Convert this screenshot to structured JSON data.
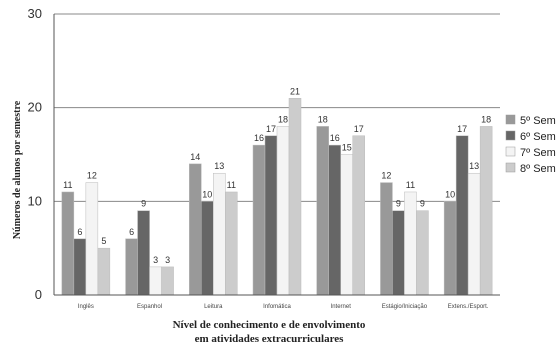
{
  "chart_data": {
    "type": "bar",
    "categories": [
      "Inglês",
      "Espanhol",
      "Leitura",
      "Infomática",
      "Internet",
      "Estágio/Iniciação",
      "Extens./Esport."
    ],
    "series": [
      {
        "name": "5º Sem",
        "color": "#999999",
        "values": [
          11,
          6,
          14,
          16,
          18,
          12,
          10
        ]
      },
      {
        "name": "6º Sem",
        "color": "#666666",
        "values": [
          6,
          9,
          10,
          17,
          16,
          9,
          17
        ]
      },
      {
        "name": "7º Sem",
        "color": "#f4f4f4",
        "values": [
          12,
          3,
          13,
          18,
          15,
          11,
          13
        ]
      },
      {
        "name": "8º Sem",
        "color": "#cccccc",
        "values": [
          5,
          3,
          11,
          21,
          17,
          9,
          18
        ]
      }
    ],
    "xlabel": "Nível de conhecimento e de envolvimento em atividades extracurriculares",
    "ylabel": "Números de alunos por semestre",
    "yticks": [
      0,
      10,
      20,
      30
    ],
    "ylim": [
      0,
      30
    ],
    "grid": true,
    "legend_position": "right"
  }
}
